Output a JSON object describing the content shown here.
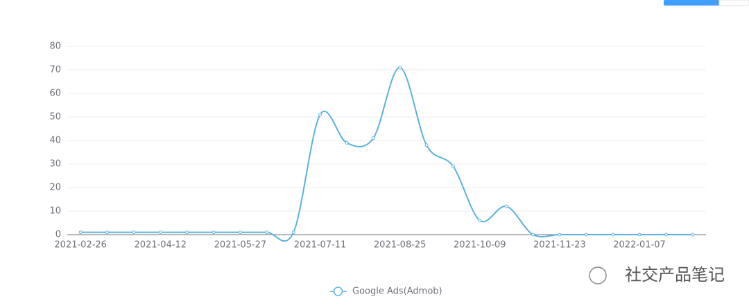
{
  "chart_data": {
    "type": "line",
    "categories": [
      "2021-02-26",
      null,
      null,
      "2021-04-12",
      null,
      null,
      "2021-05-27",
      null,
      null,
      "2021-07-11",
      null,
      null,
      "2021-08-25",
      null,
      null,
      "2021-10-09",
      null,
      null,
      "2021-11-23",
      null,
      null,
      "2022-01-07",
      null,
      null
    ],
    "series": [
      {
        "name": "Google Ads(Admob)",
        "color": "#5ab1e0",
        "values": [
          1,
          1,
          1,
          1,
          1,
          1,
          1,
          1,
          1,
          51,
          39,
          41,
          71,
          38,
          29,
          6,
          12,
          0,
          0,
          0,
          0,
          0,
          0,
          0
        ]
      }
    ],
    "ylim": [
      0,
      80
    ],
    "yticks": [
      0,
      10,
      20,
      30,
      40,
      50,
      60,
      70,
      80
    ],
    "grid": true,
    "smooth": true,
    "legend": "bottom"
  },
  "watermark": "社交产品笔记"
}
